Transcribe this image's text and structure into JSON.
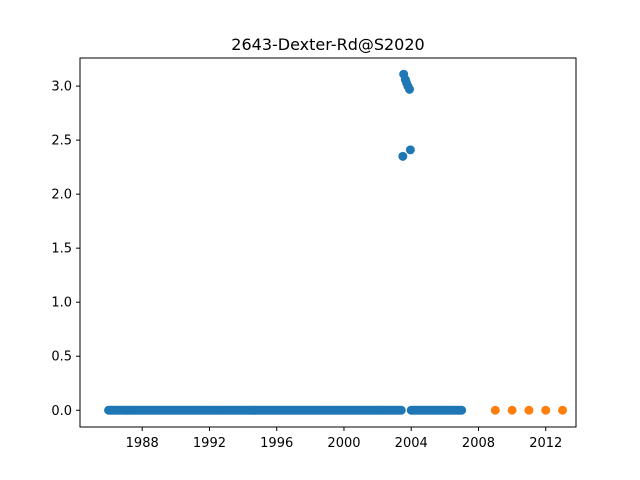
{
  "chart_data": {
    "type": "scatter",
    "title": "2643-Dexter-Rd@S2020",
    "xlabel": "",
    "ylabel": "",
    "xlim": [
      1984.3,
      2013.8
    ],
    "ylim": [
      -0.155,
      3.26
    ],
    "x_ticks": [
      1988,
      1992,
      1996,
      2000,
      2004,
      2008,
      2012
    ],
    "x_tick_labels": [
      "1988",
      "1992",
      "1996",
      "2000",
      "2004",
      "2008",
      "2012"
    ],
    "y_ticks": [
      0.0,
      0.5,
      1.0,
      1.5,
      2.0,
      2.5,
      3.0
    ],
    "y_tick_labels": [
      "0.0",
      "0.5",
      "1.0",
      "1.5",
      "2.0",
      "2.5",
      "3.0"
    ],
    "grid": false,
    "series": [
      {
        "color": "#1f77b4",
        "zero_runs": [
          {
            "start": 1986.0,
            "end": 2003.42,
            "step": 0.0833,
            "y": 0.0
          },
          {
            "start": 2004.0,
            "end": 2007.0,
            "step": 0.0833,
            "y": 0.0
          }
        ],
        "points": [
          {
            "x": 2003.5,
            "y": 2.35
          },
          {
            "x": 2003.55,
            "y": 3.11
          },
          {
            "x": 2003.65,
            "y": 3.06
          },
          {
            "x": 2003.72,
            "y": 3.03
          },
          {
            "x": 2003.8,
            "y": 3.0
          },
          {
            "x": 2003.9,
            "y": 2.97
          },
          {
            "x": 2003.95,
            "y": 2.41
          }
        ]
      },
      {
        "color": "#ff7f0e",
        "points": [
          {
            "x": 2009.0,
            "y": 0.0
          },
          {
            "x": 2010.0,
            "y": 0.0
          },
          {
            "x": 2011.0,
            "y": 0.0
          },
          {
            "x": 2012.0,
            "y": 0.0
          },
          {
            "x": 2013.0,
            "y": 0.0
          }
        ]
      }
    ]
  }
}
